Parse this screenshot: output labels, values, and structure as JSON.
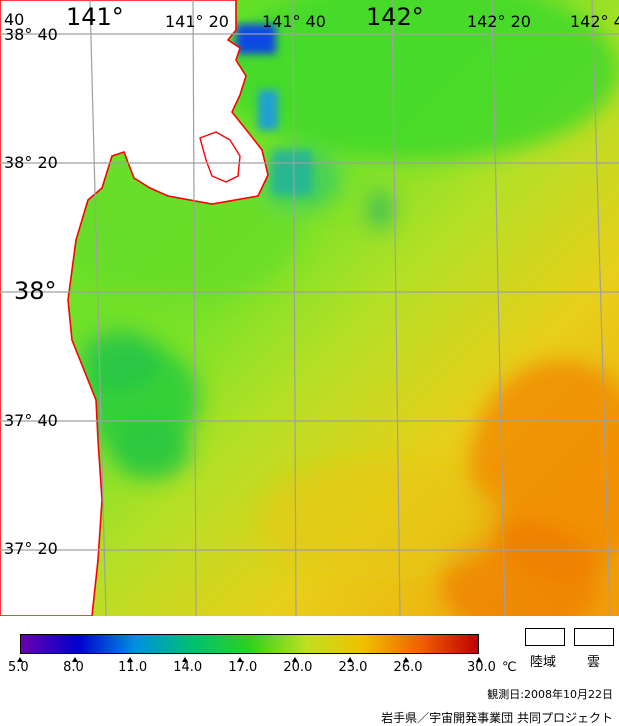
{
  "map": {
    "lon_labels": [
      {
        "text": "141°",
        "size": "big"
      },
      {
        "text": "141° 20",
        "size": "small"
      },
      {
        "text": "141° 40",
        "size": "small"
      },
      {
        "text": "142°",
        "size": "big"
      },
      {
        "text": "142° 20",
        "size": "small"
      },
      {
        "text": "142° 4",
        "size": "small"
      }
    ],
    "lat_labels": [
      {
        "text": "38° 40",
        "size": "small"
      },
      {
        "text": "38° 20",
        "size": "small"
      },
      {
        "text": "38°",
        "size": "big"
      },
      {
        "text": "37° 40",
        "size": "small"
      },
      {
        "text": "37° 20",
        "size": "small"
      }
    ],
    "corner_label": "40",
    "colors": {
      "land": "#ffffff",
      "coastline": "#ff0000",
      "grid": "#a0a0a0",
      "sea_green": "#4fe027"
    }
  },
  "legend": {
    "ticks": [
      "5.0",
      "8.0",
      "11.0",
      "14.0",
      "17.0",
      "20.0",
      "23.0",
      "26.0",
      "30.0"
    ],
    "unit": "℃",
    "colors": [
      "#6a00b0",
      "#0000cc",
      "#0090e0",
      "#00c070",
      "#30d020",
      "#c0e020",
      "#f0c000",
      "#f06000",
      "#c00000"
    ]
  },
  "key": {
    "land": "陸域",
    "cloud": "雲"
  },
  "observation_date": "観測日:2008年10月22日",
  "credit": "岩手県／宇宙開発事業団 共同プロジェクト"
}
